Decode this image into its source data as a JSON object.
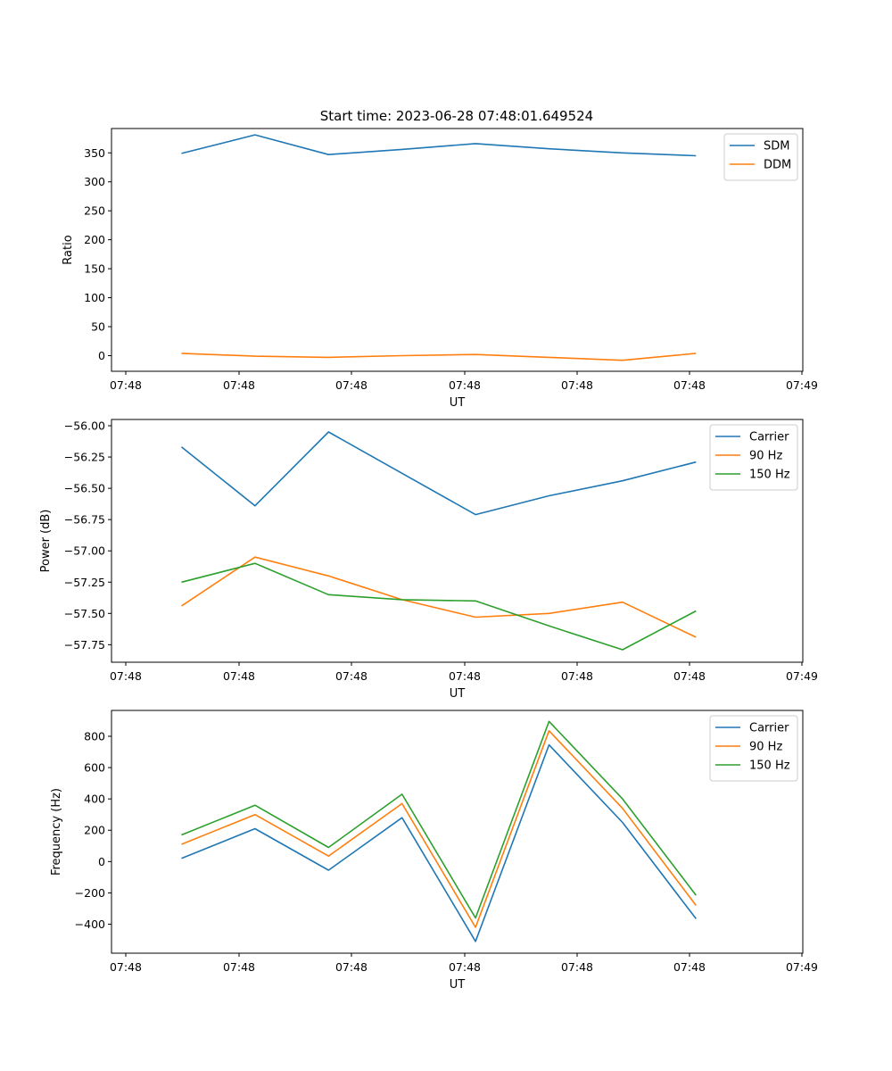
{
  "figure": {
    "title": "Start time: 2023-06-28 07:48:01.649524"
  },
  "chart_data": [
    {
      "type": "line",
      "xlabel": "UT",
      "ylabel": "Ratio",
      "x_tick_labels": [
        "07:48",
        "07:48",
        "07:48",
        "07:48",
        "07:48",
        "07:48",
        "07:49"
      ],
      "y_ticks": [
        0,
        50,
        100,
        150,
        200,
        250,
        300,
        350
      ],
      "ylim": [
        -27,
        392
      ],
      "legend_position": "upper right",
      "grid": false,
      "series": [
        {
          "name": "SDM",
          "color": "#1f77b4",
          "values": [
            349,
            381,
            347,
            356,
            366,
            357,
            350,
            345
          ]
        },
        {
          "name": "DDM",
          "color": "#ff7f0e",
          "values": [
            4,
            -1,
            -3,
            0,
            2,
            -3,
            -8,
            4
          ]
        }
      ]
    },
    {
      "type": "line",
      "xlabel": "UT",
      "ylabel": "Power (dB)",
      "x_tick_labels": [
        "07:48",
        "07:48",
        "07:48",
        "07:48",
        "07:48",
        "07:48",
        "07:49"
      ],
      "y_ticks": [
        -56.0,
        -56.25,
        -56.5,
        -56.75,
        -57.0,
        -57.25,
        -57.5,
        -57.75
      ],
      "y_tick_labels": [
        "−56.00",
        "−56.25",
        "−56.50",
        "−56.75",
        "−57.00",
        "−57.25",
        "−57.50",
        "−57.75"
      ],
      "ylim": [
        -57.89,
        -55.95
      ],
      "legend_position": "upper right",
      "grid": false,
      "series": [
        {
          "name": "Carrier",
          "color": "#1f77b4",
          "values": [
            -56.17,
            -56.64,
            -56.05,
            -56.38,
            -56.71,
            -56.56,
            -56.44,
            -56.29
          ]
        },
        {
          "name": "90 Hz",
          "color": "#ff7f0e",
          "values": [
            -57.44,
            -57.05,
            -57.2,
            -57.39,
            -57.53,
            -57.5,
            -57.41,
            -57.69
          ]
        },
        {
          "name": "150 Hz",
          "color": "#2ca02c",
          "values": [
            -57.25,
            -57.1,
            -57.35,
            -57.39,
            -57.4,
            -57.6,
            -57.79,
            -57.48
          ]
        }
      ]
    },
    {
      "type": "line",
      "xlabel": "UT",
      "ylabel": "Frequency (Hz)",
      "x_tick_labels": [
        "07:48",
        "07:48",
        "07:48",
        "07:48",
        "07:48",
        "07:48",
        "07:49"
      ],
      "y_ticks": [
        800,
        600,
        400,
        200,
        0,
        -200,
        -400
      ],
      "y_tick_labels": [
        "800",
        "600",
        "400",
        "200",
        "0",
        "−200",
        "−400"
      ],
      "ylim": [
        -585,
        965
      ],
      "legend_position": "upper right",
      "grid": false,
      "series": [
        {
          "name": "Carrier",
          "color": "#1f77b4",
          "values": [
            20,
            210,
            -55,
            280,
            -510,
            745,
            250,
            -365
          ]
        },
        {
          "name": "90 Hz",
          "color": "#ff7f0e",
          "values": [
            110,
            300,
            35,
            370,
            -420,
            835,
            340,
            -280
          ]
        },
        {
          "name": "150 Hz",
          "color": "#2ca02c",
          "values": [
            170,
            360,
            90,
            430,
            -360,
            895,
            400,
            -215
          ]
        }
      ]
    }
  ]
}
